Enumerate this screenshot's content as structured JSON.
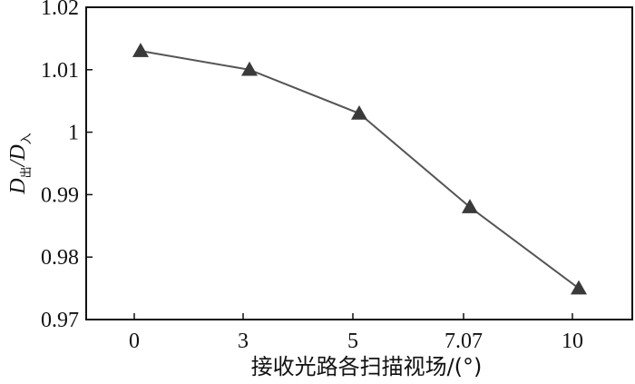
{
  "chart_data": {
    "type": "line",
    "categories": [
      "0",
      "3",
      "5",
      "7.07",
      "10"
    ],
    "series": [
      {
        "values": [
          1.013,
          1.01,
          1.003,
          0.988,
          0.975
        ]
      }
    ],
    "ylim": [
      0.97,
      1.02
    ],
    "yticks": [
      "0.97",
      "0.98",
      "0.99",
      "1",
      "1.01",
      "1.02"
    ],
    "xlabel": "接收光路各扫描视场/(°)",
    "ylabel": {
      "num_main": "D",
      "num_sub": "出",
      "slash": "/",
      "den_main": "D",
      "den_sub": "入"
    },
    "marker": "triangle",
    "line_color": "#555555",
    "marker_color": "#3a3a3a",
    "grid": false,
    "legend": "none"
  }
}
